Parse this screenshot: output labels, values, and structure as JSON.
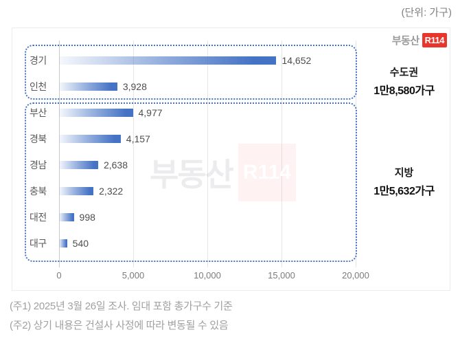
{
  "header": {
    "unit_label": "(단위: 가구)"
  },
  "logo": {
    "prefix": "부동산",
    "badge": "R114"
  },
  "watermark": {
    "prefix": "부동산",
    "badge": "R114"
  },
  "chart_data": {
    "type": "bar",
    "orientation": "horizontal",
    "title": "",
    "xlabel": "",
    "ylabel": "",
    "categories": [
      "경기",
      "인천",
      "부산",
      "경북",
      "경남",
      "충북",
      "대전",
      "대구"
    ],
    "values": [
      14652,
      3928,
      4977,
      4157,
      2638,
      2322,
      998,
      540
    ],
    "value_labels": [
      "14,652",
      "3,928",
      "4,977",
      "4,157",
      "2,638",
      "2,322",
      "998",
      "540"
    ],
    "x_ticks": [
      "0",
      "5,000",
      "10,000",
      "15,000",
      "20,000"
    ],
    "x_tick_values": [
      0,
      5000,
      10000,
      15000,
      20000
    ],
    "xlim": [
      0,
      20000
    ],
    "grid": true,
    "legend": false,
    "bar_color": "#4472c4",
    "groups": [
      {
        "label": "수도권",
        "total_label": "1만8,580가구",
        "total_value": 18580,
        "categories": [
          "경기",
          "인천"
        ]
      },
      {
        "label": "지방",
        "total_label": "1만5,632가구",
        "total_value": 15632,
        "categories": [
          "부산",
          "경북",
          "경남",
          "충북",
          "대전",
          "대구"
        ]
      }
    ]
  },
  "summary": {
    "capital": {
      "title": "수도권",
      "value": "1만8,580가구"
    },
    "regional": {
      "title": "지방",
      "value": "1만5,632가구"
    }
  },
  "footnotes": [
    "(주1) 2025년 3월 26일 조사. 임대 포함 총가구수 기준",
    "(주2) 상기 내용은 건설사 사정에 따라 변동될 수 있음"
  ],
  "colors": {
    "bar": "#4472c4",
    "group_border": "#4472c4",
    "logo_red": "#e8362d",
    "gridline": "#e6e6e6",
    "footnote_text": "#a0a0a0"
  }
}
